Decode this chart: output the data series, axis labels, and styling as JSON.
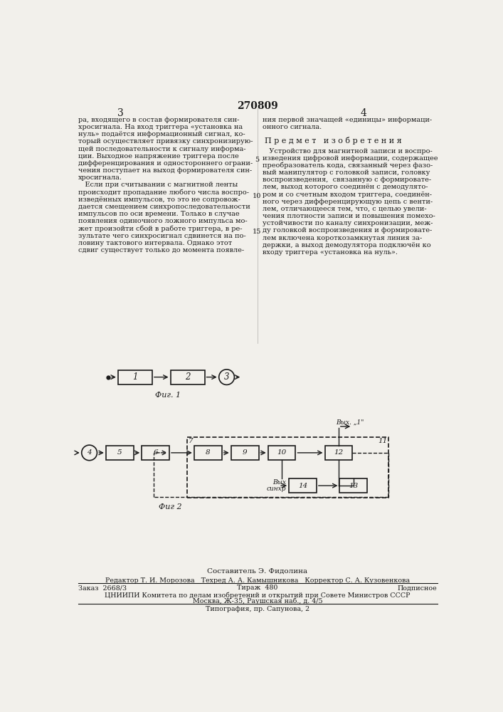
{
  "title": "270809",
  "page_color": "#f2f0eb",
  "text_color": "#1a1a1a",
  "col_left_header": "3",
  "col_right_header": "4",
  "left_text": [
    "ра, входящего в состав формирователя син-",
    "хросигнала. На вход триггера «установка на",
    "нуль» подаётся информационный сигнал, ко-",
    "торый осуществляет привязку синхронизирую-",
    "щей последовательности к сигналу информа-",
    "ции. Выходное напряжение триггера после",
    "дифференцирования и одностороннего ограни-",
    "чения поступает на выход формирователя син-",
    "хросигнала.",
    "   Если при считывании с магнитной ленты",
    "происходит пропадание любого числа воспро-",
    "изведённых импульсов, то это не сопровож-",
    "дается смещением синхропоследовательности",
    "импульсов по оси времени. Только в случае",
    "появления одиночного ложного импульса мо-",
    "жет произойти сбой в работе триггера, в ре-",
    "зультате чего синхросигнал сдвинется на по-",
    "ловину тактового интервала. Однако этот",
    "сдвиг существует только до момента появле-"
  ],
  "right_text_title": "П р е д м е т   и з о б р е т е н и я",
  "right_text_intro": "ния первой значащей «единицы» информаци-",
  "right_text_intro2": "онного сигнала.",
  "right_text_body": [
    "   Устройство для магнитной записи и воспро-",
    "изведения цифровой информации, содержащее",
    "преобразователь кода, связанный через фазо-",
    "вый манипулятор с головкой записи, головку",
    "воспроизведения,  связанную с формировате-",
    "лем, выход которого соединён с демодулято-",
    "ром и со счетным входом триггера, соединён-",
    "ного через дифференцирующую цепь с венти-",
    "лем, отличающееся тем, что, с целью увели-",
    "чения плотности записи и повышения помехо-",
    "устойчивости по каналу синхронизации, меж-",
    "ду головкой воспроизведения и формировате-",
    "лем включена короткозамкнутая линия за-",
    "держки, а выход демодулятора подключён ко",
    "входу триггера «установка на нуль»."
  ],
  "italic_word_line": 8,
  "italic_word": "отличающееся",
  "fig1_label": "Фиг. 1",
  "fig2_label": "Фиг 2",
  "footer_compiler": "Составитель Э. Фидолина",
  "footer_editor": "Редактор Т. И. Морозова   Техред А. А. Камышникова   Корректор С. А. Кузовенкова",
  "footer_order": "Заказ  2668/3",
  "footer_circulation": "Тираж  480",
  "footer_subscription": "Подписное",
  "footer_org": "ЦНИИПИ Комитета по делам изобретений и открытий при Совете Министров СССР",
  "footer_address": "Москва, Ж-35, Раушская наб., д. 4/5",
  "footer_print": "Типография, пр. Сапунова, 2"
}
